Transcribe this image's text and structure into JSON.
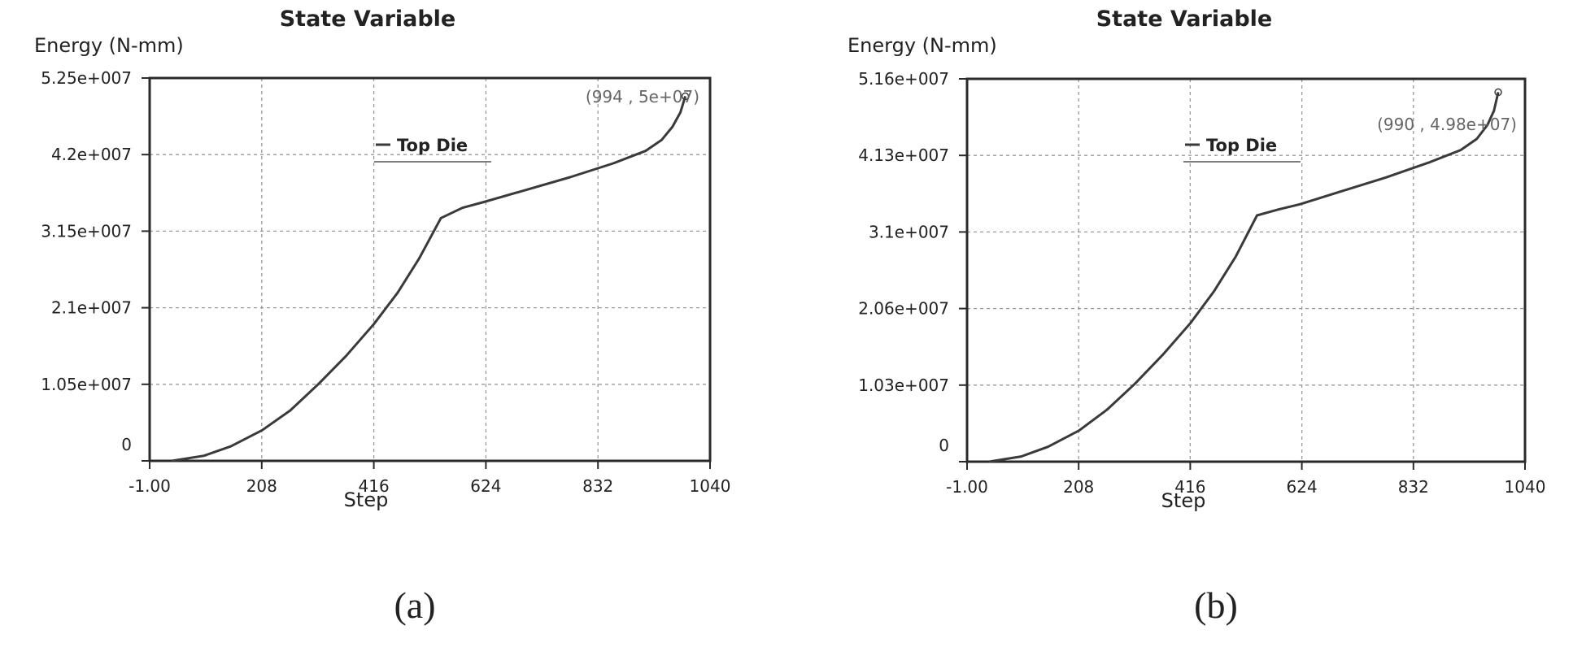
{
  "colors": {
    "line": "#3a3a3a",
    "axis": "#2a2a2a",
    "grid": "#9a9a9a",
    "text": "#222222",
    "background": "#ffffff"
  },
  "chart_data": [
    {
      "type": "line",
      "title": "State Variable",
      "ylabel": "Energy (N-mm)",
      "xlabel": "Step",
      "xlim": [
        -1,
        1040
      ],
      "ylim": [
        0,
        52500000
      ],
      "x_ticks": [
        "-1.00",
        "208",
        "416",
        "624",
        "832",
        "1040"
      ],
      "y_ticks": [
        "0",
        "1.05e+007",
        "2.1e+007",
        "3.15e+007",
        "4.2e+007",
        "5.25e+007"
      ],
      "grid": true,
      "legend": {
        "label": "Top Die",
        "position": "top-center"
      },
      "annotation": "(994 , 5e+07)",
      "caption": "(a)",
      "series": [
        {
          "name": "Top Die",
          "x": [
            40,
            100,
            150,
            208,
            260,
            312,
            364,
            416,
            460,
            500,
            540,
            580,
            620,
            700,
            780,
            860,
            920,
            950,
            970,
            985,
            994
          ],
          "y": [
            0,
            700000,
            2000000,
            4200000,
            6900000,
            10500000,
            14400000,
            18800000,
            23100000,
            27800000,
            33300000,
            34700000,
            35500000,
            37200000,
            38900000,
            40800000,
            42500000,
            44000000,
            45800000,
            47800000,
            50000000
          ]
        }
      ]
    },
    {
      "type": "line",
      "title": "State Variable",
      "ylabel": "Energy (N-mm)",
      "xlabel": "Step",
      "xlim": [
        -1,
        1040
      ],
      "ylim": [
        0,
        51600000
      ],
      "x_ticks": [
        "-1.00",
        "208",
        "416",
        "624",
        "832",
        "1040"
      ],
      "y_ticks": [
        "0",
        "1.03e+007",
        "2.06e+007",
        "3.1e+007",
        "4.13e+007",
        "5.16e+007"
      ],
      "grid": true,
      "legend": {
        "label": "Top Die",
        "position": "top-center"
      },
      "annotation": "(990 , 4.98e+07)",
      "caption": "(b)",
      "series": [
        {
          "name": "Top Die",
          "x": [
            40,
            100,
            150,
            208,
            260,
            312,
            364,
            416,
            460,
            500,
            540,
            580,
            620,
            700,
            780,
            860,
            920,
            950,
            970,
            982,
            990
          ],
          "y": [
            0,
            700000,
            2000000,
            4200000,
            7000000,
            10500000,
            14400000,
            18700000,
            23000000,
            27600000,
            33200000,
            34000000,
            34700000,
            36500000,
            38300000,
            40300000,
            42000000,
            43500000,
            45400000,
            47300000,
            49800000
          ]
        }
      ]
    }
  ]
}
